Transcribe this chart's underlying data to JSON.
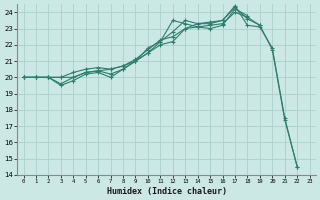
{
  "xlabel": "Humidex (Indice chaleur)",
  "bg_color": "#cce8e4",
  "grid_color": "#aad0cc",
  "line_color": "#2e7d6e",
  "xlim": [
    -0.5,
    23.5
  ],
  "ylim": [
    14,
    24.5
  ],
  "xticks": [
    0,
    1,
    2,
    3,
    4,
    5,
    6,
    7,
    8,
    9,
    10,
    11,
    12,
    13,
    14,
    15,
    16,
    17,
    18,
    19,
    20,
    21,
    22,
    23
  ],
  "yticks": [
    14,
    15,
    16,
    17,
    18,
    19,
    20,
    21,
    22,
    23,
    24
  ],
  "series": [
    {
      "x": [
        0,
        1,
        2,
        3,
        4,
        5,
        6,
        7,
        8,
        9,
        10,
        11,
        12,
        13,
        14,
        15,
        16,
        17,
        18,
        19,
        20,
        21,
        22
      ],
      "y": [
        20.0,
        20.0,
        20.0,
        19.5,
        19.8,
        20.2,
        20.3,
        20.0,
        20.5,
        21.0,
        21.5,
        22.0,
        22.2,
        23.0,
        23.1,
        23.2,
        23.3,
        24.0,
        23.7,
        23.2,
        21.7,
        17.4,
        14.5
      ]
    },
    {
      "x": [
        0,
        1,
        2,
        3,
        4,
        5,
        6,
        7,
        8,
        9,
        10,
        11,
        12,
        13,
        14,
        15,
        16,
        17,
        18
      ],
      "y": [
        20.0,
        20.0,
        20.0,
        20.0,
        20.0,
        20.3,
        20.4,
        20.5,
        20.7,
        21.0,
        21.8,
        22.2,
        23.5,
        23.3,
        23.1,
        23.0,
        23.2,
        24.2,
        23.8
      ]
    },
    {
      "x": [
        0,
        1,
        2,
        3,
        4,
        5,
        6,
        7,
        8,
        9,
        10,
        11,
        12,
        13,
        14,
        15,
        16,
        17,
        18,
        19
      ],
      "y": [
        20.0,
        20.0,
        20.0,
        19.6,
        20.0,
        20.3,
        20.4,
        20.2,
        20.5,
        21.0,
        21.5,
        22.2,
        22.8,
        23.5,
        23.3,
        23.3,
        23.5,
        24.3,
        23.6,
        23.2
      ]
    },
    {
      "x": [
        0,
        1,
        2,
        3,
        4,
        5,
        6,
        7,
        8,
        9,
        10,
        11,
        12,
        13,
        14,
        15,
        16,
        17,
        18,
        19,
        20,
        21,
        22
      ],
      "y": [
        20.0,
        20.0,
        20.0,
        20.0,
        20.3,
        20.5,
        20.6,
        20.5,
        20.7,
        21.1,
        21.7,
        22.3,
        22.5,
        23.0,
        23.3,
        23.4,
        23.5,
        24.4,
        23.2,
        23.1,
        21.8,
        17.5,
        14.5
      ]
    }
  ]
}
